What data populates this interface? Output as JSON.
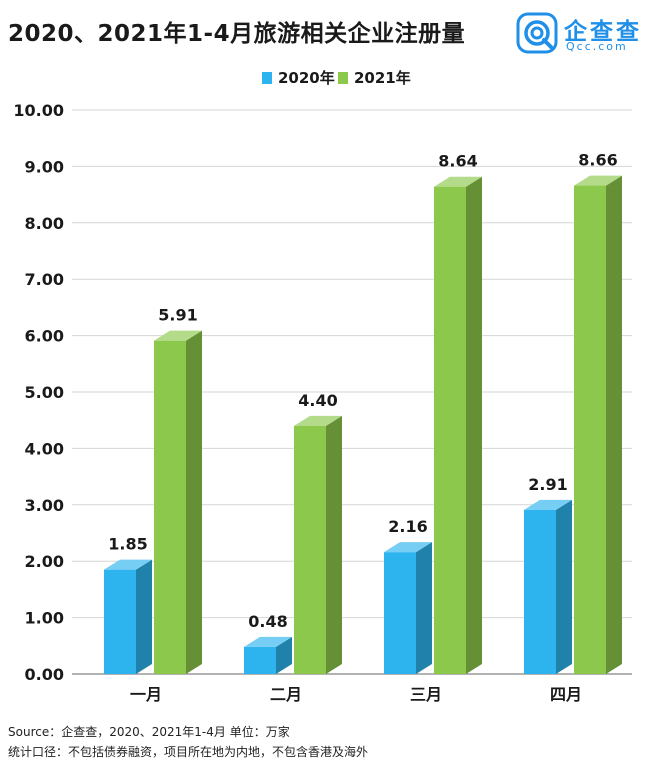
{
  "header": {
    "title": "2020、2021年1-4月旅游相关企业注册量",
    "brand_name": "企查查",
    "brand_domain": "Qcc.com",
    "brand_color": "#1f8fe8"
  },
  "chart_data": {
    "type": "bar",
    "title": "2020、2021年1-4月旅游相关企业注册量",
    "categories": [
      "一月",
      "二月",
      "三月",
      "四月"
    ],
    "series": [
      {
        "name": "2020年",
        "values": [
          1.85,
          0.48,
          2.16,
          2.91
        ],
        "color": "#2db4ee",
        "labels": [
          "1.85",
          "0.48",
          "2.16",
          "2.91"
        ]
      },
      {
        "name": "2021年",
        "values": [
          5.91,
          4.4,
          8.64,
          8.66
        ],
        "color": "#8cc84b",
        "labels": [
          "5.91",
          "4.40",
          "8.64",
          "8.66"
        ]
      }
    ],
    "yticks": [
      "0.00",
      "1.00",
      "2.00",
      "3.00",
      "4.00",
      "5.00",
      "6.00",
      "7.00",
      "8.00",
      "9.00",
      "10.00"
    ],
    "ylim": [
      0,
      10
    ],
    "xlabel": "",
    "ylabel": "",
    "grid": true,
    "legend_position": "top-center",
    "style": "3d"
  },
  "footer": {
    "source": "Source：企查查，2020、2021年1-4月 单位：万家",
    "note": "统计口径：不包括债券融资，项目所在地为内地，不包含香港及海外"
  }
}
